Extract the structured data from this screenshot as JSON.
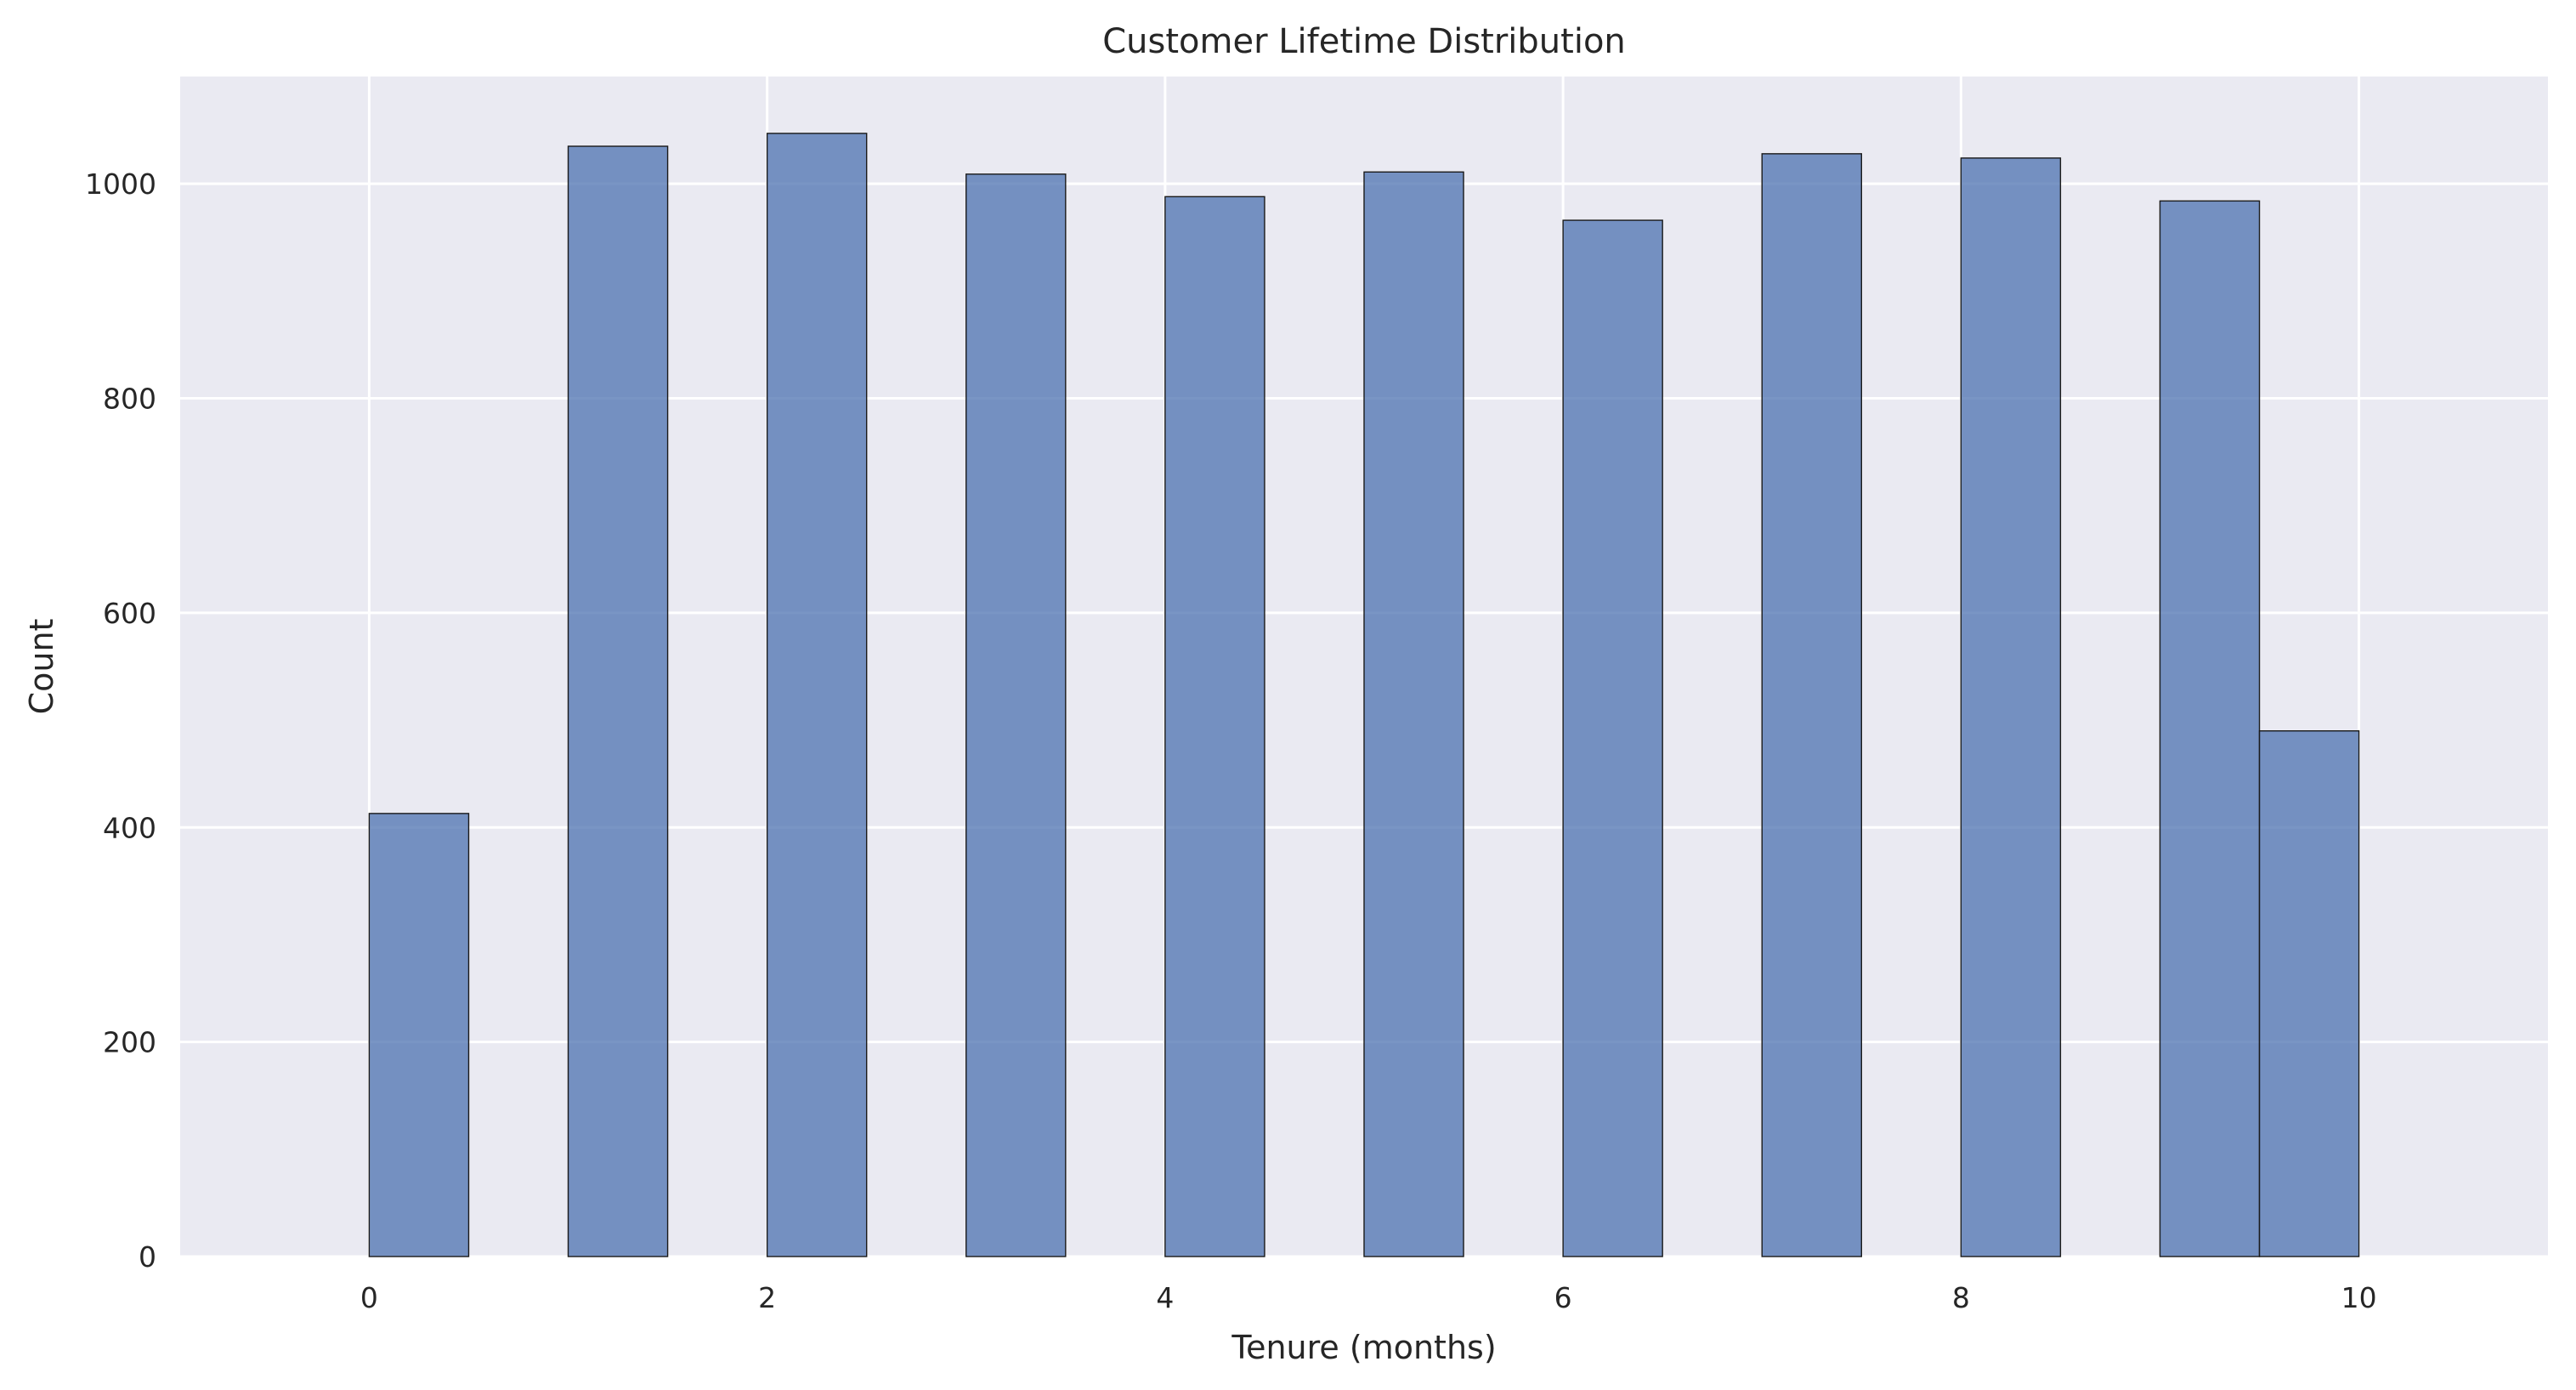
{
  "chart_data": {
    "type": "bar",
    "title": "Customer Lifetime Distribution",
    "xlabel": "Tenure (months)",
    "ylabel": "Count",
    "xlim": [
      -0.95,
      10.95
    ],
    "ylim": [
      0,
      1100
    ],
    "x_ticks": [
      0,
      2,
      4,
      6,
      8,
      10
    ],
    "y_ticks": [
      0,
      200,
      400,
      600,
      800,
      1000
    ],
    "grid": true,
    "legend": "none",
    "colors": {
      "plot_background": "#eaeaf2",
      "bar_fill": "#4c72b0",
      "bar_edge": "#1a1a1a",
      "grid": "#ffffff",
      "text": "#262626"
    },
    "bins": [
      {
        "x0": 0.0,
        "x1": 0.5,
        "count": 413
      },
      {
        "x0": 1.0,
        "x1": 1.5,
        "count": 1035
      },
      {
        "x0": 2.0,
        "x1": 2.5,
        "count": 1047
      },
      {
        "x0": 3.0,
        "x1": 3.5,
        "count": 1009
      },
      {
        "x0": 4.0,
        "x1": 4.5,
        "count": 988
      },
      {
        "x0": 5.0,
        "x1": 5.5,
        "count": 1011
      },
      {
        "x0": 6.0,
        "x1": 6.5,
        "count": 966
      },
      {
        "x0": 7.0,
        "x1": 7.5,
        "count": 1028
      },
      {
        "x0": 8.0,
        "x1": 8.5,
        "count": 1024
      },
      {
        "x0": 9.0,
        "x1": 9.5,
        "count": 984
      },
      {
        "x0": 9.5,
        "x1": 10.0,
        "count": 490
      }
    ]
  }
}
